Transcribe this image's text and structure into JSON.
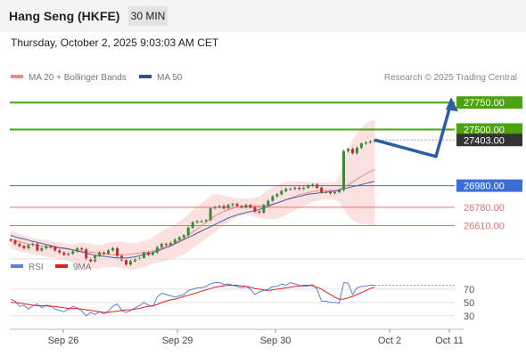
{
  "header": {
    "title": "Hang Seng (HKFE)",
    "timeframe": "30 MIN"
  },
  "timestamp": "Thursday, October 2, 2025 9:03:03 AM CET",
  "credit": "Research © 2025 Trading Central",
  "colors": {
    "resistance": "#4ca30d",
    "pivot": "#3b6fd8",
    "support": "#e07070",
    "price": "#333333",
    "ma20": "#f08a8a",
    "ma50": "#4a5fa6",
    "rsi": "#5b7fd6",
    "rsi_ma": "#e02020",
    "candle_up": "#3a8a3a",
    "candle_down": "#c03030",
    "arrow": "#2e5aa8"
  },
  "chart_data": [
    {
      "type": "candlestick",
      "legend": [
        {
          "name": "MA 20 + Bollinger Bands",
          "color": "#f08a8a"
        },
        {
          "name": "MA 50",
          "color": "#2f4f8f"
        }
      ],
      "x_ticks": [
        "Sep 26",
        "Sep 29",
        "Sep 30",
        "Oct 2",
        "Oct 11"
      ],
      "ylim": [
        26350,
        27900
      ],
      "levels": [
        {
          "value": 27750.0,
          "label": "27750.00",
          "kind": "resistance"
        },
        {
          "value": 27500.0,
          "label": "27500.00",
          "kind": "resistance"
        },
        {
          "value": 27403.0,
          "label": "27403.00",
          "kind": "last"
        },
        {
          "value": 26980.0,
          "label": "26980.00",
          "kind": "pivot"
        },
        {
          "value": 26780.0,
          "label": "26780.00",
          "kind": "support"
        },
        {
          "value": 26610.0,
          "label": "26610.00",
          "kind": "support"
        }
      ],
      "close": [
        26470,
        26440,
        26420,
        26400,
        26430,
        26440,
        26380,
        26400,
        26420,
        26410,
        26380,
        26360,
        26340,
        26350,
        26370,
        26400,
        26390,
        26300,
        26280,
        26330,
        26360,
        26350,
        26380,
        26400,
        26330,
        26290,
        26250,
        26280,
        26300,
        26310,
        26360,
        26340,
        26360,
        26410,
        26440,
        26430,
        26450,
        26480,
        26500,
        26520,
        26590,
        26640,
        26650,
        26650,
        26660,
        26770,
        26780,
        26790,
        26770,
        26800,
        26810,
        26790,
        26780,
        26800,
        26780,
        26740,
        26730,
        26800,
        26840,
        26880,
        26900,
        26930,
        26950,
        26950,
        26960,
        26950,
        26960,
        26980,
        26990,
        26960,
        26920,
        26920,
        26910,
        26920,
        26940,
        27300,
        27320,
        27280,
        27330,
        27370,
        27380,
        27390,
        27403
      ],
      "projection": [
        27403,
        27250,
        27750
      ],
      "ma20": [
        26480,
        26470,
        26460,
        26450,
        26440,
        26435,
        26425,
        26420,
        26415,
        26410,
        26405,
        26400,
        26395,
        26390,
        26385,
        26380,
        26375,
        26370,
        26365,
        26360,
        26355,
        26350,
        26345,
        26340,
        26340,
        26340,
        26340,
        26345,
        26350,
        26355,
        26360,
        26365,
        26375,
        26385,
        26400,
        26415,
        26430,
        26450,
        26470,
        26490,
        26520,
        26550,
        26580,
        26610,
        26640,
        26670,
        26700,
        26720,
        26740,
        26755,
        26770,
        26780,
        26785,
        26790,
        26790,
        26790,
        26790,
        26795,
        26800,
        26810,
        26820,
        26835,
        26850,
        26865,
        26880,
        26895,
        26905,
        26915,
        26925,
        26930,
        26935,
        26935,
        26935,
        26935,
        26940,
        26965,
        26990,
        27015,
        27040,
        27065,
        27090,
        27110,
        27130
      ],
      "ma50": [
        26520,
        26505,
        26495,
        26485,
        26475,
        26465,
        26455,
        26445,
        26435,
        26425,
        26415,
        26405,
        26400,
        26395,
        26385,
        26375,
        26365,
        26355,
        26345,
        26335,
        26330,
        26325,
        26320,
        26315,
        26310,
        26310,
        26310,
        26315,
        26320,
        26330,
        26340,
        26350,
        26360,
        26375,
        26390,
        26405,
        26420,
        26440,
        26460,
        26480,
        26500,
        26520,
        26540,
        26560,
        26580,
        26600,
        26620,
        26640,
        26660,
        26680,
        26695,
        26710,
        26720,
        26730,
        26740,
        26750,
        26760,
        26775,
        26790,
        26805,
        26820,
        26835,
        26850,
        26860,
        26870,
        26880,
        26890,
        26900,
        26905,
        26910,
        26915,
        26920,
        26925,
        26930,
        26940,
        26950,
        26960,
        26970,
        26980,
        26990,
        27000,
        27010,
        27020
      ],
      "bb_upper": [
        26560,
        26550,
        26535,
        26520,
        26505,
        26495,
        26485,
        26480,
        26480,
        26470,
        26460,
        26455,
        26445,
        26440,
        26440,
        26445,
        26450,
        26450,
        26440,
        26430,
        26430,
        26440,
        26450,
        26460,
        26465,
        26460,
        26455,
        26450,
        26450,
        26455,
        26470,
        26480,
        26500,
        26530,
        26560,
        26580,
        26600,
        26620,
        26650,
        26680,
        26710,
        26750,
        26790,
        26820,
        26850,
        26880,
        26900,
        26900,
        26890,
        26880,
        26870,
        26860,
        26860,
        26860,
        26860,
        26870,
        26880,
        26910,
        26940,
        26960,
        26980,
        27000,
        27010,
        27020,
        27020,
        27020,
        27020,
        27015,
        27010,
        27010,
        27010,
        27010,
        27010,
        27010,
        27060,
        27200,
        27320,
        27400,
        27470,
        27520,
        27560,
        27580,
        27590
      ],
      "bb_lower": [
        26400,
        26385,
        26370,
        26360,
        26355,
        26345,
        26335,
        26330,
        26320,
        26315,
        26310,
        26300,
        26290,
        26280,
        26260,
        26240,
        26230,
        26220,
        26215,
        26210,
        26215,
        26220,
        26225,
        26230,
        26225,
        26215,
        26205,
        26200,
        26205,
        26215,
        26225,
        26240,
        26255,
        26265,
        26275,
        26285,
        26295,
        26310,
        26325,
        26345,
        26370,
        26400,
        26430,
        26460,
        26490,
        26520,
        26550,
        26580,
        26610,
        26640,
        26670,
        26690,
        26700,
        26700,
        26700,
        26690,
        26680,
        26675,
        26670,
        26670,
        26675,
        26690,
        26710,
        26730,
        26750,
        26770,
        26790,
        26810,
        26830,
        26840,
        26850,
        26850,
        26850,
        26850,
        26830,
        26760,
        26700,
        26660,
        26640,
        26625,
        26620,
        26610,
        26600
      ]
    },
    {
      "type": "line",
      "legend": [
        {
          "name": "RSI",
          "color": "#5b7fd6"
        },
        {
          "name": "9MA",
          "color": "#e02020"
        }
      ],
      "ylim": [
        15,
        90
      ],
      "y_ticks": [
        30,
        50,
        70
      ],
      "rsi": [
        55,
        52,
        44,
        46,
        40,
        45,
        48,
        42,
        46,
        45,
        40,
        38,
        36,
        40,
        44,
        42,
        37,
        30,
        35,
        32,
        36,
        33,
        37,
        44,
        48,
        38,
        35,
        38,
        42,
        45,
        50,
        46,
        44,
        58,
        64,
        62,
        60,
        58,
        60,
        62,
        68,
        70,
        72,
        72,
        74,
        78,
        80,
        80,
        77,
        78,
        76,
        74,
        72,
        74,
        70,
        62,
        66,
        68,
        70,
        74,
        74,
        78,
        76,
        80,
        78,
        76,
        74,
        75,
        77,
        70,
        52,
        52,
        50,
        50,
        49,
        80,
        79,
        62,
        72,
        74,
        75,
        76,
        76
      ],
      "rsi_ma": [
        50,
        50,
        49,
        48,
        47,
        46,
        45,
        45,
        45,
        44,
        44,
        43,
        42,
        41,
        41,
        41,
        40,
        39,
        38,
        37,
        36,
        35,
        35,
        36,
        37,
        38,
        39,
        39,
        40,
        41,
        43,
        44,
        45,
        47,
        50,
        52,
        54,
        55,
        57,
        59,
        61,
        63,
        65,
        67,
        69,
        71,
        73,
        74,
        75,
        76,
        76,
        76,
        75,
        74,
        73,
        71,
        70,
        69,
        68,
        69,
        70,
        71,
        72,
        73,
        74,
        75,
        76,
        76,
        75,
        73,
        70,
        66,
        62,
        58,
        55,
        55,
        57,
        59,
        62,
        65,
        68,
        71,
        73
      ]
    }
  ]
}
